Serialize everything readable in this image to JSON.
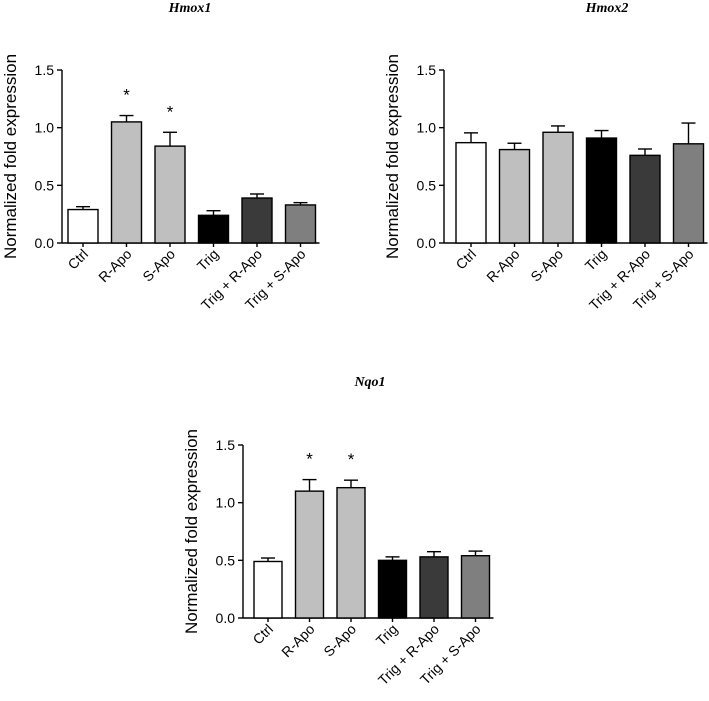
{
  "chart_data": [
    {
      "type": "bar",
      "title": "Hmox1",
      "ylabel": "Normalized fold expression",
      "xlabel": "",
      "ylim": [
        0,
        1.5
      ],
      "yticks": [
        "0.0",
        "0.5",
        "1.0",
        "1.5"
      ],
      "categories": [
        "Ctrl",
        "R-Apo",
        "S-Apo",
        "Trig",
        "Trig + R-Apo",
        "Trig + S-Apo"
      ],
      "values": [
        0.29,
        1.05,
        0.84,
        0.24,
        0.39,
        0.33
      ],
      "errors": [
        0.025,
        0.055,
        0.12,
        0.04,
        0.035,
        0.02
      ],
      "significance": [
        "",
        "*",
        "*",
        "",
        "",
        ""
      ],
      "colors": [
        "#ffffff",
        "#bfbfbf",
        "#bfbfbf",
        "#000000",
        "#3a3a3a",
        "#7f7f7f"
      ]
    },
    {
      "type": "bar",
      "title": "Hmox2",
      "ylabel": "Normalized fold expression",
      "xlabel": "",
      "ylim": [
        0,
        1.5
      ],
      "yticks": [
        "0.0",
        "0.5",
        "1.0",
        "1.5"
      ],
      "categories": [
        "Ctrl",
        "R-Apo",
        "S-Apo",
        "Trig",
        "Trig + R-Apo",
        "Trig + S-Apo"
      ],
      "values": [
        0.87,
        0.81,
        0.96,
        0.91,
        0.76,
        0.86
      ],
      "errors": [
        0.085,
        0.055,
        0.055,
        0.065,
        0.055,
        0.18
      ],
      "significance": [
        "",
        "",
        "",
        "",
        "",
        ""
      ],
      "colors": [
        "#ffffff",
        "#bfbfbf",
        "#bfbfbf",
        "#000000",
        "#3a3a3a",
        "#7f7f7f"
      ]
    },
    {
      "type": "bar",
      "title": "Nqo1",
      "ylabel": "Normalized fold expression",
      "xlabel": "",
      "ylim": [
        0,
        1.5
      ],
      "yticks": [
        "0.0",
        "0.5",
        "1.0",
        "1.5"
      ],
      "categories": [
        "Ctrl",
        "R-Apo",
        "S-Apo",
        "Trig",
        "Trig + R-Apo",
        "Trig + S-Apo"
      ],
      "values": [
        0.49,
        1.1,
        1.13,
        0.5,
        0.53,
        0.54
      ],
      "errors": [
        0.03,
        0.1,
        0.065,
        0.03,
        0.045,
        0.04
      ],
      "significance": [
        "",
        "*",
        "*",
        "",
        "",
        ""
      ],
      "colors": [
        "#ffffff",
        "#bfbfbf",
        "#bfbfbf",
        "#000000",
        "#3a3a3a",
        "#7f7f7f"
      ]
    }
  ]
}
